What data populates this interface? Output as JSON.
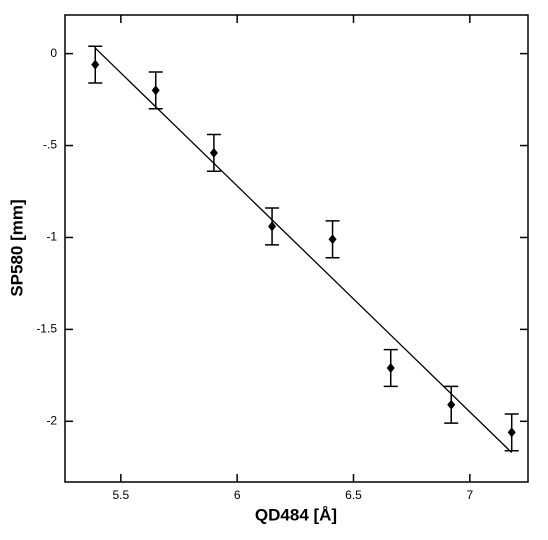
{
  "chart_data": {
    "type": "scatter",
    "x_label": "QD484 [Å]",
    "y_label": "SP580 [mm]",
    "x": [
      5.39,
      5.65,
      5.9,
      6.15,
      6.41,
      6.66,
      6.92,
      7.18
    ],
    "values": [
      -0.06,
      -0.2,
      -0.54,
      -0.94,
      -1.01,
      -1.71,
      -1.91,
      -2.06
    ],
    "errors": [
      0.1,
      0.1,
      0.1,
      0.1,
      0.1,
      0.1,
      0.1,
      0.1
    ],
    "color": "#000000",
    "fit": {
      "x": [
        5.39,
        7.18
      ],
      "values": [
        0.03,
        -2.17
      ]
    },
    "xlim": [
      5.26,
      7.25
    ],
    "ylim": [
      -2.33,
      0.21
    ],
    "xticks": [
      5.5,
      6,
      6.5,
      7
    ],
    "yticks": [
      0,
      {
        "value": -0.5,
        "label": "-.5"
      },
      -1,
      -1.5,
      -2
    ],
    "grid": false
  }
}
